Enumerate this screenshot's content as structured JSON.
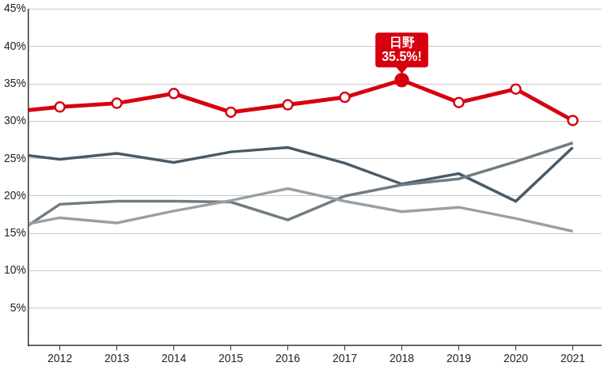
{
  "chart_data": {
    "type": "line",
    "x": [
      2011.45,
      2012,
      2013,
      2014,
      2015,
      2016,
      2017,
      2018,
      2019,
      2020,
      2021
    ],
    "series": [
      {
        "color": "#9a9fa3",
        "marker": "none",
        "values": [
          16.3,
          17.1,
          16.4,
          18.0,
          19.4,
          21.0,
          19.3,
          17.9,
          18.5,
          17.0,
          15.3
        ]
      },
      {
        "color": "#6f7c83",
        "marker": "none",
        "values": [
          16.1,
          18.9,
          19.3,
          19.3,
          19.2,
          16.8,
          20.0,
          21.5,
          22.3,
          24.6,
          27.1
        ]
      },
      {
        "color": "#4b5a64",
        "marker": "none",
        "values": [
          25.4,
          24.9,
          25.7,
          24.5,
          25.9,
          26.5,
          24.4,
          21.6,
          23.0,
          19.3,
          26.5
        ]
      },
      {
        "color": "#d7000f",
        "marker": "circle",
        "values": [
          31.5,
          31.9,
          32.4,
          33.7,
          31.2,
          32.2,
          33.2,
          35.5,
          32.5,
          34.3,
          30.1
        ]
      }
    ],
    "xlim": [
      2011.45,
      2021.5
    ],
    "xticks": [
      2012,
      2013,
      2014,
      2015,
      2016,
      2017,
      2018,
      2019,
      2020,
      2021
    ],
    "ylim": [
      0,
      45
    ],
    "yticks": [
      {
        "value": 5,
        "label": "5%"
      },
      {
        "value": 10,
        "label": "10%"
      },
      {
        "value": 15,
        "label": "15%"
      },
      {
        "value": 20,
        "label": "20%"
      },
      {
        "value": 25,
        "label": "25%"
      },
      {
        "value": 30,
        "label": "30%"
      },
      {
        "value": 35,
        "label": "35%"
      },
      {
        "value": 40,
        "label": "40%"
      },
      {
        "value": 45,
        "label": "45%"
      }
    ],
    "grid": true,
    "annotations": [
      {
        "x": 2018,
        "y": 35.5,
        "color": "#d7000f",
        "lines": [
          "日野",
          "35.5%!"
        ]
      }
    ]
  }
}
